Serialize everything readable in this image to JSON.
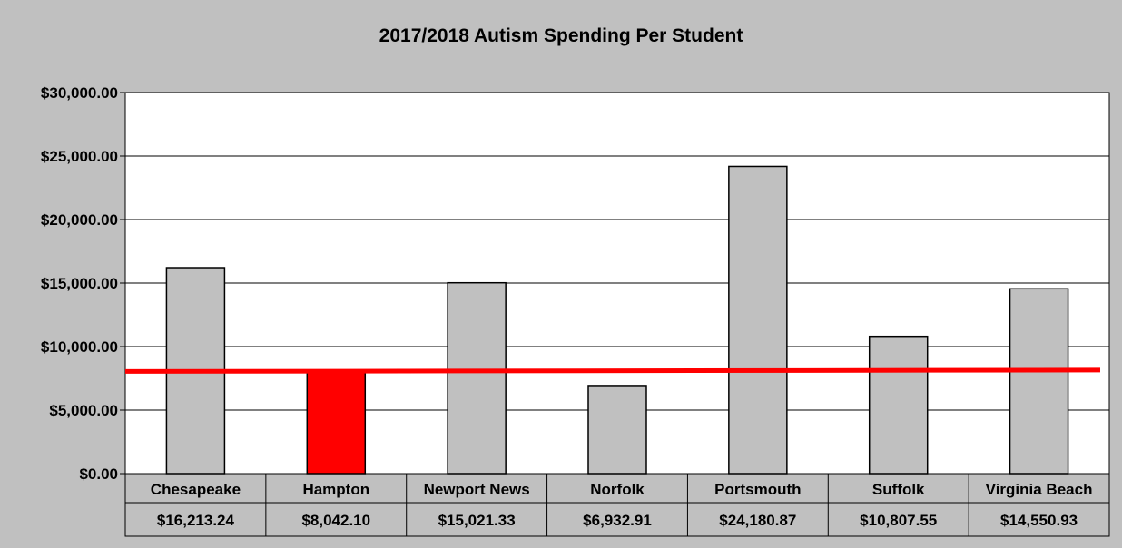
{
  "chart_data": {
    "type": "bar",
    "title": "2017/2018 Autism Spending Per Student",
    "xlabel": "",
    "ylabel": "",
    "categories": [
      "Chesapeake",
      "Hampton",
      "Newport News",
      "Norfolk",
      "Portsmouth",
      "Suffolk",
      "Virginia Beach"
    ],
    "values": [
      16213.24,
      8042.1,
      15021.33,
      6932.91,
      24180.87,
      10807.55,
      14550.93
    ],
    "value_labels": [
      "$16,213.24",
      "$8,042.10",
      "$15,021.33",
      "$6,932.91",
      "$24,180.87",
      "$10,807.55",
      "$14,550.93"
    ],
    "ylim": [
      0,
      30000
    ],
    "yticks": [
      0,
      5000,
      10000,
      15000,
      20000,
      25000,
      30000
    ],
    "ytick_labels": [
      "$0.00",
      "$5,000.00",
      "$10,000.00",
      "$15,000.00",
      "$20,000.00",
      "$25,000.00",
      "$30,000.00"
    ],
    "grid": true,
    "legend": "none",
    "data_table": true,
    "reference_line": {
      "value": 8042.1,
      "color": "#ff0000"
    },
    "colors": {
      "bar": "#c0c0c0",
      "highlight_bar": "#ff0000",
      "highlight_index": 1,
      "background": "#c0c0c0",
      "plot_area": "#ffffff"
    }
  }
}
